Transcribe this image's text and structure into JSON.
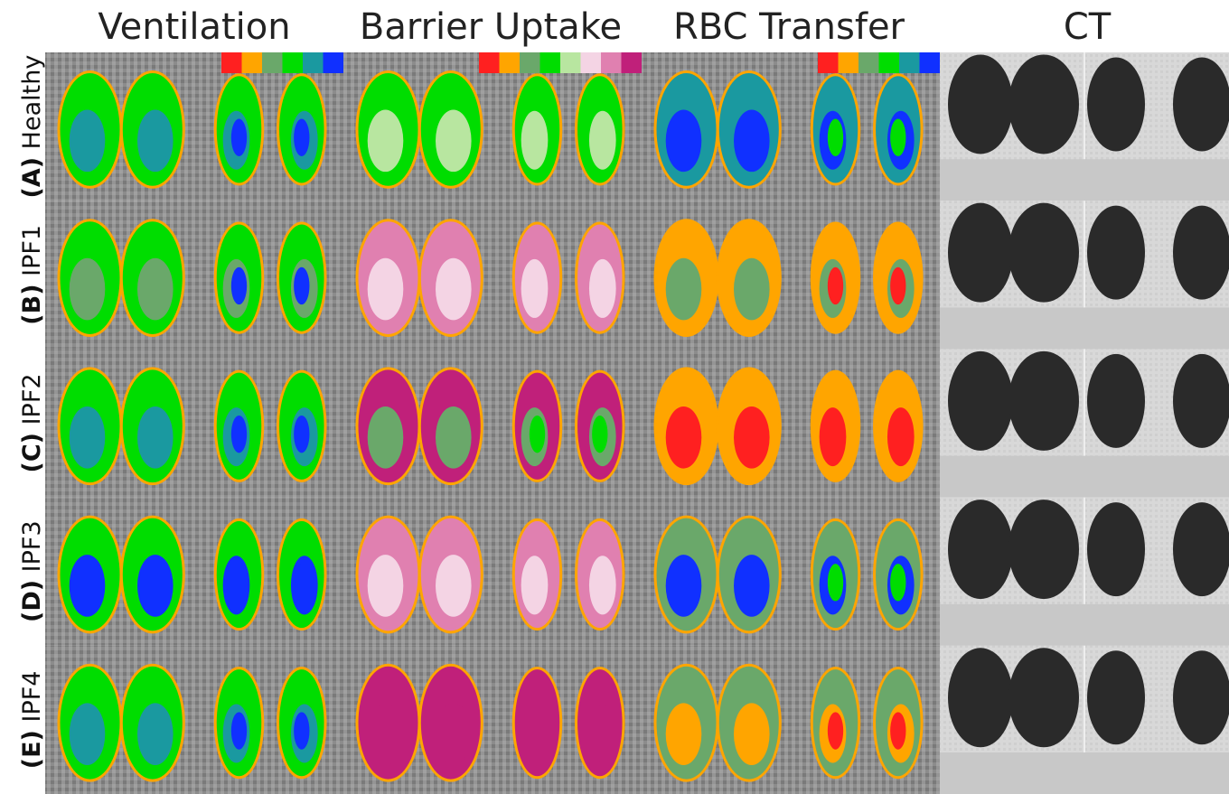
{
  "headers": [
    "Ventilation",
    "Barrier Uptake",
    "RBC Transfer",
    "CT"
  ],
  "rows": [
    {
      "letter": "(A)",
      "name": "Healthy"
    },
    {
      "letter": "(B)",
      "name": "IPF1"
    },
    {
      "letter": "(C)",
      "name": "IPF2"
    },
    {
      "letter": "(D)",
      "name": "IPF3"
    },
    {
      "letter": "(E)",
      "name": "IPF4"
    }
  ],
  "colorbars": [
    {
      "colors": [
        "#ff2020",
        "#ffa500",
        "#6aa86a",
        "#00dd00",
        "#1a99a0",
        "#1030ff"
      ]
    },
    {
      "colors": [
        "#ff2020",
        "#ffa500",
        "#6aa86a",
        "#00dd00",
        "#b8e6a0",
        "#f4d4e4",
        "#e080b0",
        "#c0207a"
      ]
    },
    {
      "colors": [
        "#ff2020",
        "#ffa500",
        "#6aa86a",
        "#00dd00",
        "#1a99a0",
        "#1030ff"
      ]
    }
  ]
}
